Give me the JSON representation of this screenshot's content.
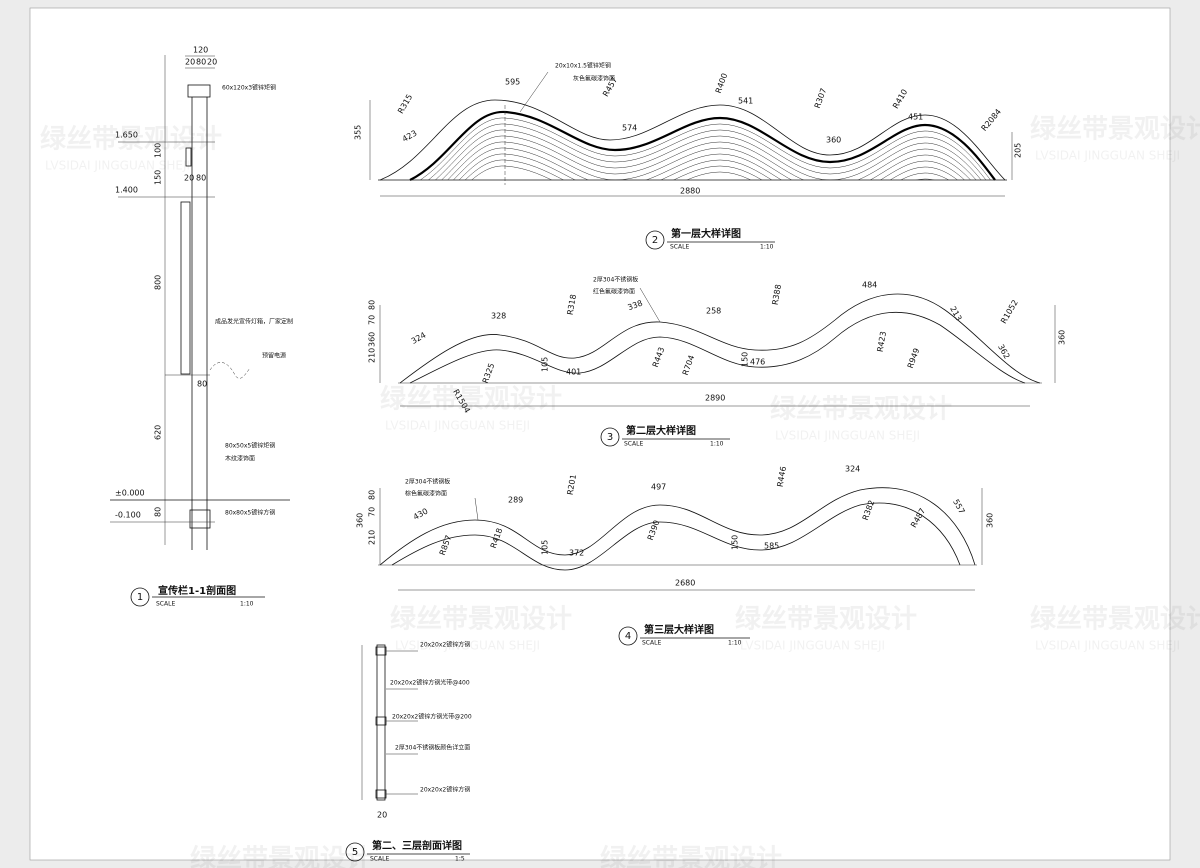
{
  "watermark": "绿丝带景观设计",
  "watermark_sub": "LVSIDAI JINGGUAN SHEJI",
  "drawings": [
    {
      "number": "1",
      "title": "宣传栏1-1剖面图",
      "scale_label": "SCALE",
      "scale": "1:10",
      "dims": [
        "120",
        "20",
        "80",
        "20",
        "100",
        "150",
        "800",
        "80",
        "620",
        "80",
        "20",
        "80"
      ],
      "levels": [
        "1.650",
        "1.400",
        "±0.000",
        "-0.100"
      ],
      "notes": [
        "60x120x3镀锌矩钢",
        "成品发光宣传灯箱，厂家定制",
        "预留电源",
        "80x50x5镀锌矩钢",
        "木纹漆饰面",
        "80x80x5镀锌方钢"
      ]
    },
    {
      "number": "2",
      "title": "第一层大样详图",
      "scale_label": "SCALE",
      "scale": "1:10",
      "dims": [
        "2880",
        "355",
        "205",
        "595",
        "574",
        "541",
        "360",
        "451",
        "423"
      ],
      "radii": [
        "R315",
        "R457",
        "R400",
        "R307",
        "R410",
        "R2084"
      ],
      "notes": [
        "20x10x1.5镀锌矩钢",
        "灰色氟碳漆饰面"
      ]
    },
    {
      "number": "3",
      "title": "第二层大样详图",
      "scale_label": "SCALE",
      "scale": "1:10",
      "dims": [
        "2890",
        "360",
        "70",
        "80",
        "210",
        "324",
        "328",
        "401",
        "338",
        "258",
        "476",
        "484",
        "213",
        "105",
        "150",
        "362",
        "360"
      ],
      "radii": [
        "R318",
        "R1504",
        "R325",
        "R443",
        "R704",
        "R388",
        "R423",
        "R949",
        "R1052"
      ],
      "notes": [
        "2厚304不锈钢板",
        "红色氟碳漆饰面"
      ]
    },
    {
      "number": "4",
      "title": "第三层大样详图",
      "scale_label": "SCALE",
      "scale": "1:10",
      "dims": [
        "2680",
        "360",
        "80",
        "70",
        "210",
        "430",
        "289",
        "372",
        "497",
        "585",
        "324",
        "557",
        "105",
        "150",
        "360"
      ],
      "radii": [
        "R201",
        "R857",
        "R418",
        "R390",
        "R446",
        "R382",
        "R487"
      ],
      "notes": [
        "2厚304不锈钢板",
        "棕色氟碳漆饰面"
      ]
    },
    {
      "number": "5",
      "title": "第二、三层剖面详图",
      "scale_label": "SCALE",
      "scale": "1:5",
      "dims": [
        "20"
      ],
      "notes": [
        "20x20x2镀锌方钢",
        "20x20x2镀锌方钢光带@400",
        "20x20x2镀锌方钢光带@200",
        "2厚304不锈钢板颜色详立面",
        "20x20x2镀锌方钢"
      ]
    }
  ]
}
